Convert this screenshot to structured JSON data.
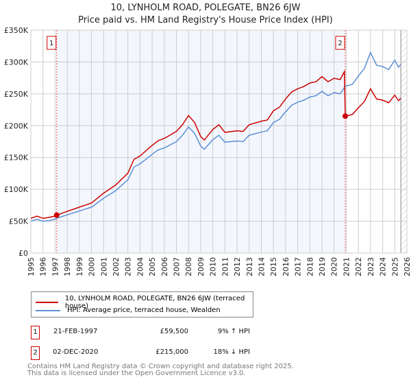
{
  "chart_data": {
    "type": "line",
    "title": "10, LYNHOLM ROAD, POLEGATE, BN26 6JW",
    "subtitle": "Price paid vs. HM Land Registry's House Price Index (HPI)",
    "xlim": [
      1995,
      2026
    ],
    "ylim": [
      0,
      350000
    ],
    "y_ticks": [
      {
        "v": 0,
        "label": "£0"
      },
      {
        "v": 50000,
        "label": "£50K"
      },
      {
        "v": 100000,
        "label": "£100K"
      },
      {
        "v": 150000,
        "label": "£150K"
      },
      {
        "v": 200000,
        "label": "£200K"
      },
      {
        "v": 250000,
        "label": "£250K"
      },
      {
        "v": 300000,
        "label": "£300K"
      },
      {
        "v": 350000,
        "label": "£350K"
      }
    ],
    "x_ticks": [
      "1995",
      "1996",
      "1997",
      "1998",
      "1999",
      "2000",
      "2001",
      "2002",
      "2003",
      "2004",
      "2005",
      "2006",
      "2007",
      "2008",
      "2009",
      "2010",
      "2011",
      "2012",
      "2013",
      "2014",
      "2015",
      "2016",
      "2017",
      "2018",
      "2019",
      "2020",
      "2021",
      "2022",
      "2023",
      "2024",
      "2025",
      "2026"
    ],
    "grid": true,
    "series": [
      {
        "name": "10, LYNHOLM ROAD, POLEGATE, BN26 6JW (terraced house)",
        "color": "#cc0000",
        "x": [
          1995,
          1995.5,
          1996,
          1996.5,
          1997,
          1997.13,
          1998,
          1999,
          2000,
          2001,
          2002,
          2003,
          2003.5,
          2004,
          2005,
          2005.5,
          2006,
          2007,
          2007.5,
          2008,
          2008.5,
          2009,
          2009.3,
          2010,
          2010.5,
          2011,
          2012,
          2012.5,
          2013,
          2014,
          2014.5,
          2015,
          2015.5,
          2016,
          2016.5,
          2017,
          2017.5,
          2018,
          2018.5,
          2019,
          2019.5,
          2020,
          2020.5,
          2020.85,
          2020.92,
          2021.5,
          2022,
          2022.5,
          2023,
          2023.5,
          2024,
          2024.5,
          2025,
          2025.3,
          2025.5
        ],
        "y": [
          54500,
          58000,
          54500,
          56000,
          58000,
          59500,
          65500,
          72000,
          78500,
          94000,
          107000,
          125500,
          147000,
          152500,
          169000,
          176500,
          180000,
          191000,
          201500,
          216000,
          205000,
          183000,
          177500,
          194000,
          201500,
          189500,
          192000,
          191000,
          201500,
          207000,
          209000,
          223500,
          229000,
          242000,
          253000,
          258000,
          261500,
          267000,
          269000,
          277000,
          269000,
          274500,
          272500,
          285000,
          215000,
          217500,
          228000,
          238000,
          258000,
          242000,
          240000,
          236000,
          248000,
          239500,
          243000
        ]
      },
      {
        "name": "HPI: Average price, terraced house, Wealden",
        "color": "#5b8fd6",
        "x": [
          1995,
          1995.5,
          1996,
          1996.5,
          1997,
          1997.13,
          1998,
          1999,
          2000,
          2001,
          2002,
          2003,
          2003.5,
          2004,
          2005,
          2005.5,
          2006,
          2007,
          2007.5,
          2008,
          2008.5,
          2009,
          2009.3,
          2010,
          2010.5,
          2011,
          2012,
          2012.5,
          2013,
          2014,
          2014.5,
          2015,
          2015.5,
          2016,
          2016.5,
          2017,
          2017.5,
          2018,
          2018.5,
          2019,
          2019.5,
          2020,
          2020.5,
          2020.92,
          2021.5,
          2022,
          2022.5,
          2023,
          2023.5,
          2024,
          2024.5,
          2025,
          2025.3,
          2025.5
        ],
        "y": [
          50000,
          53000,
          50000,
          51000,
          53000,
          54600,
          60000,
          66000,
          72000,
          86000,
          98000,
          115000,
          135000,
          140000,
          155000,
          162000,
          165000,
          175000,
          185000,
          198000,
          188000,
          168000,
          163000,
          178000,
          185000,
          174000,
          176000,
          175000,
          185000,
          190000,
          192000,
          205000,
          210000,
          222000,
          232000,
          237000,
          240000,
          245000,
          247000,
          254000,
          247000,
          252000,
          250000,
          262000,
          265000,
          278000,
          290000,
          315000,
          295000,
          293000,
          288000,
          303000,
          292000,
          296000
        ]
      }
    ],
    "annotations": [
      {
        "id": "1",
        "x": 1997.13,
        "y": 59500,
        "date": "21-FEB-1997",
        "price": "£59,500",
        "hpi": "9% ↑ HPI"
      },
      {
        "id": "2",
        "x": 2020.92,
        "y": 215000,
        "date": "02-DEC-2020",
        "price": "£215,000",
        "hpi": "18% ↓ HPI"
      }
    ],
    "shaded_range": [
      1997.13,
      2020.92
    ],
    "hatched_from": 2025.5
  },
  "footer": {
    "line1": "Contains HM Land Registry data © Crown copyright and database right 2025.",
    "line2": "This data is licensed under the Open Government Licence v3.0."
  }
}
